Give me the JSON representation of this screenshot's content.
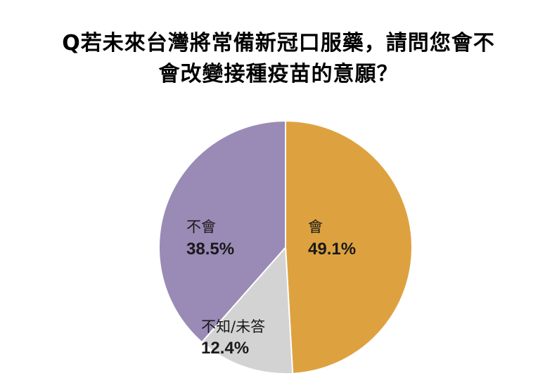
{
  "chart_data": {
    "type": "pie",
    "title_lines": [
      "Q若未來台灣將常備新冠口服藥，請問您會不",
      "會改變接種疫苗的意願？"
    ],
    "slices": [
      {
        "name": "會",
        "value": 49.1,
        "label": "49.1%",
        "color": "#DDA23F"
      },
      {
        "name": "不知/未答",
        "value": 12.4,
        "label": "12.4%",
        "color": "#D3D3D3"
      },
      {
        "name": "不會",
        "value": 38.5,
        "label": "38.5%",
        "color": "#9A8AB6"
      }
    ],
    "start_angle": "12 o'clock",
    "direction": "clockwise",
    "legend": "none"
  }
}
